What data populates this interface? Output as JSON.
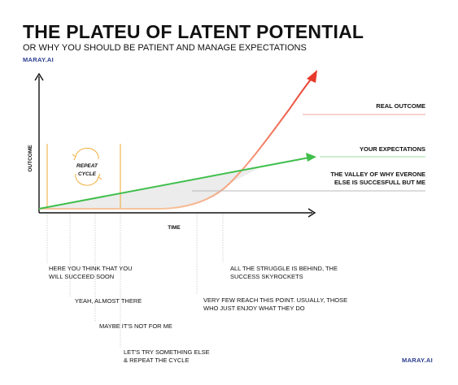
{
  "header": {
    "title": "THE PLATEU OF LATENT POTENTIAL",
    "subtitle": "OR WHY YOU SHOULD BE PATIENT AND MANAGE EXPECTATIONS",
    "brand_top": "MARAY.AI",
    "brand_bottom": "MARAY.AI"
  },
  "axes": {
    "y_label": "OUTCOME",
    "x_label": "TIME"
  },
  "cycle": {
    "line1": "REPEAT",
    "line2": "CYCLE"
  },
  "lines": {
    "real_outcome": "REAL OUTCOME",
    "your_expectations": "YOUR EXPECTATIONS",
    "valley_line1": "THE VALLEY OF WHY EVERONE",
    "valley_line2": "ELSE IS SUCCESFULL BUT ME"
  },
  "notes": {
    "n1": "HERE YOU THINK THAT YOU\nWILL SUCCEED SOON",
    "n2": "YEAH, ALMOST THERE",
    "n3": "MAYBE IT'S NOT FOR ME",
    "n4": "LET'S TRY SOMETHING ELSE\n& REPEAT THE CYCLE",
    "n5": "VERY FEW REACH THIS POINT. USUALLY, THOSE\nWHO JUST ENJOY WHAT THEY DO",
    "n6": "ALL THE STRUGGLE IS BEHIND, THE\nSUCCESS SKYROCKETS"
  },
  "colors": {
    "real_outcome": "#e8392b",
    "expectations": "#3fbf4c",
    "valley_fill": "#ececec",
    "cycle": "#f0a830",
    "brand": "#2a3d8f"
  }
}
